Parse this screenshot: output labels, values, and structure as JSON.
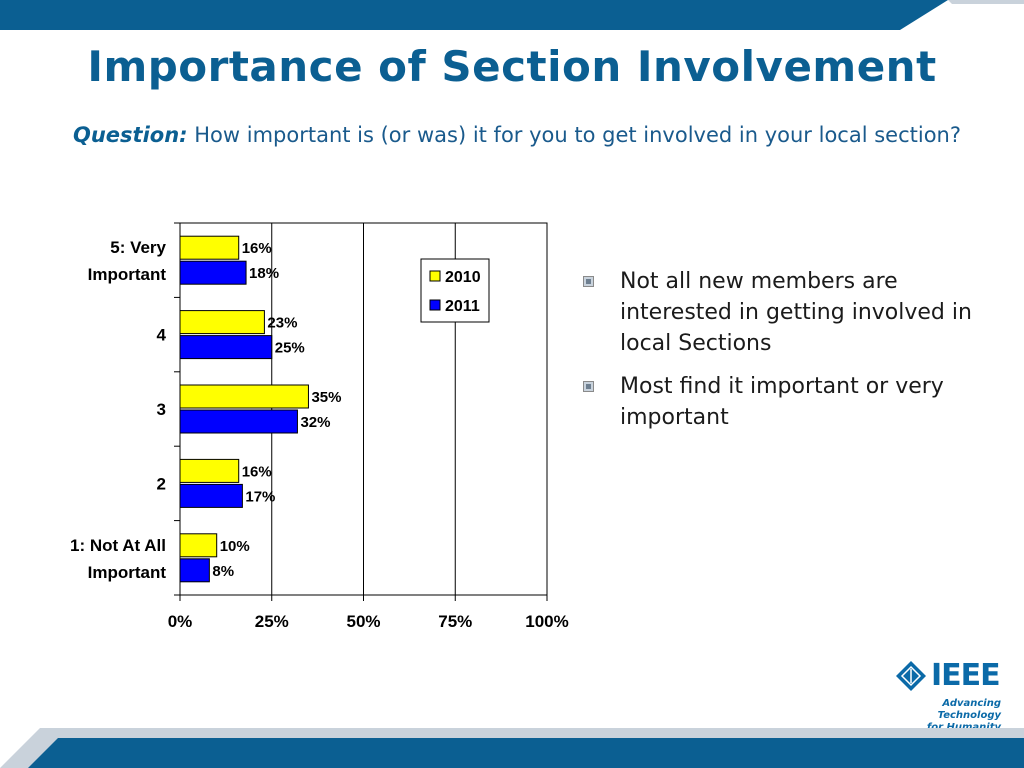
{
  "title": "Importance of Section Involvement",
  "question": {
    "label": "Question:",
    "text": "How important is (or was) it for you to get involved in your local section?"
  },
  "bullets": [
    "Not all new members are interested in getting involved in local Sections",
    "Most find it important or very important"
  ],
  "logo": {
    "name": "IEEE",
    "tagline_line1": "Advancing Technology",
    "tagline_line2": "for Humanity"
  },
  "colors": {
    "brand_blue": "#0b5f92",
    "bar_2010": "#ffff00",
    "bar_2011": "#0000ff"
  },
  "chart_data": {
    "type": "bar",
    "orientation": "horizontal",
    "categories": [
      "5: Very Important",
      "4",
      "3",
      "2",
      "1: Not At All Important"
    ],
    "series": [
      {
        "name": "2010",
        "values": [
          16,
          23,
          35,
          16,
          10
        ],
        "labels": [
          "16%",
          "23%",
          "35%",
          "16%",
          "10%"
        ]
      },
      {
        "name": "2011",
        "values": [
          18,
          25,
          32,
          17,
          8
        ],
        "labels": [
          "18%",
          "25%",
          "32%",
          "17%",
          "8%"
        ]
      }
    ],
    "xlim": [
      0,
      100
    ],
    "xticks": [
      0,
      25,
      50,
      75,
      100
    ],
    "xtick_labels": [
      "0%",
      "25%",
      "50%",
      "75%",
      "100%"
    ],
    "grid": "vertical",
    "legend": "top-right"
  }
}
